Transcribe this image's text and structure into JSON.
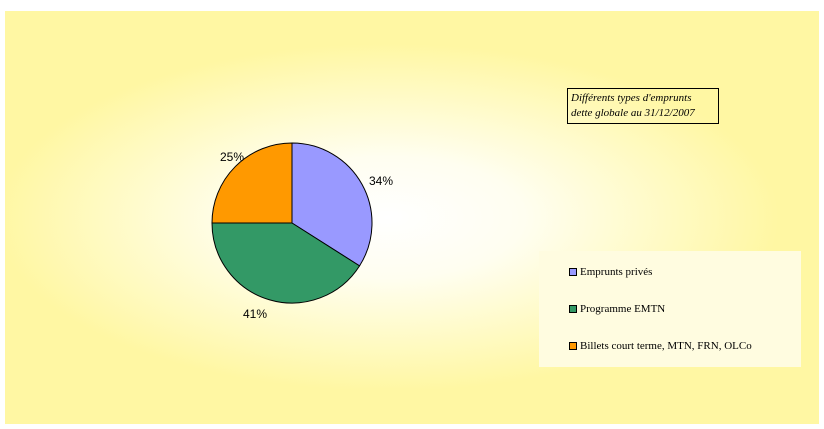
{
  "chart_data": {
    "type": "pie",
    "title": "Différents types d'emprunts",
    "subtitle": "dette globale au 31/12/2007",
    "slices": [
      {
        "label": "Emprunts privés",
        "value": 34,
        "display": "34%",
        "color": "#9999ff"
      },
      {
        "label": "Programme EMTN",
        "value": 41,
        "display": "41%",
        "color": "#339966"
      },
      {
        "label": "Billets court terme, MTN, FRN, OLCo",
        "value": 25,
        "display": "25%",
        "color": "#ff9900"
      }
    ],
    "legend_position": "right"
  }
}
